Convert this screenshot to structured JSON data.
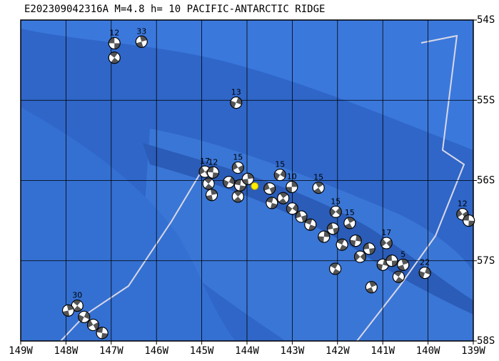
{
  "map": {
    "title": "E202309042316A M=4.8 h= 10 PACIFIC-ANTARCTIC RIDGE",
    "xlim": [
      -149,
      -139
    ],
    "ylim": [
      -58,
      -54
    ],
    "xticks": [
      {
        "value": -149,
        "label": "149W"
      },
      {
        "value": -148,
        "label": "148W"
      },
      {
        "value": -147,
        "label": "147W"
      },
      {
        "value": -146,
        "label": "146W"
      },
      {
        "value": -145,
        "label": "145W"
      },
      {
        "value": -144,
        "label": "144W"
      },
      {
        "value": -143,
        "label": "143W"
      },
      {
        "value": -142,
        "label": "142W"
      },
      {
        "value": -141,
        "label": "141W"
      },
      {
        "value": -140,
        "label": "140W"
      },
      {
        "value": -139,
        "label": "139W"
      }
    ],
    "yticks": [
      {
        "value": -54,
        "label": "54S"
      },
      {
        "value": -55,
        "label": "55S"
      },
      {
        "value": -56,
        "label": "56S"
      },
      {
        "value": -57,
        "label": "57S"
      },
      {
        "value": -58,
        "label": "58S"
      }
    ],
    "events": [
      {
        "lon": -146.93,
        "lat": -54.29,
        "label": "12"
      },
      {
        "lon": -146.93,
        "lat": -54.47
      },
      {
        "lon": -146.33,
        "lat": -54.27,
        "label": "33"
      },
      {
        "lon": -144.24,
        "lat": -55.03,
        "label": "13"
      },
      {
        "lon": -144.93,
        "lat": -55.89,
        "label": "17"
      },
      {
        "lon": -144.75,
        "lat": -55.9,
        "label": "12"
      },
      {
        "lon": -144.85,
        "lat": -56.04
      },
      {
        "lon": -144.78,
        "lat": -56.18
      },
      {
        "lon": -144.4,
        "lat": -56.02
      },
      {
        "lon": -144.2,
        "lat": -55.84,
        "label": "15"
      },
      {
        "lon": -144.15,
        "lat": -56.06
      },
      {
        "lon": -144.2,
        "lat": -56.2
      },
      {
        "lon": -143.98,
        "lat": -55.98
      },
      {
        "lon": -143.27,
        "lat": -55.93,
        "label": "15"
      },
      {
        "lon": -143.5,
        "lat": -56.1
      },
      {
        "lon": -143.45,
        "lat": -56.28
      },
      {
        "lon": -143.2,
        "lat": -56.22
      },
      {
        "lon": -143.01,
        "lat": -56.08,
        "label": "10"
      },
      {
        "lon": -143.0,
        "lat": -56.35
      },
      {
        "lon": -142.8,
        "lat": -56.45
      },
      {
        "lon": -142.6,
        "lat": -56.55
      },
      {
        "lon": -142.42,
        "lat": -56.09,
        "label": "15"
      },
      {
        "lon": -142.3,
        "lat": -56.7
      },
      {
        "lon": -142.04,
        "lat": -56.39,
        "label": "15"
      },
      {
        "lon": -142.1,
        "lat": -56.6
      },
      {
        "lon": -141.9,
        "lat": -56.8
      },
      {
        "lon": -141.73,
        "lat": -56.53,
        "label": "15"
      },
      {
        "lon": -141.6,
        "lat": -56.75
      },
      {
        "lon": -141.5,
        "lat": -56.95
      },
      {
        "lon": -141.3,
        "lat": -56.85
      },
      {
        "lon": -142.05,
        "lat": -57.1
      },
      {
        "lon": -141.25,
        "lat": -57.33
      },
      {
        "lon": -141.0,
        "lat": -57.05
      },
      {
        "lon": -140.92,
        "lat": -56.78,
        "label": "17"
      },
      {
        "lon": -140.8,
        "lat": -57.0
      },
      {
        "lon": -140.65,
        "lat": -57.2
      },
      {
        "lon": -140.55,
        "lat": -57.05,
        "label": "5"
      },
      {
        "lon": -140.07,
        "lat": -57.15,
        "label": "22"
      },
      {
        "lon": -139.24,
        "lat": -56.42,
        "label": "12"
      },
      {
        "lon": -139.1,
        "lat": -56.5
      },
      {
        "lon": -147.75,
        "lat": -57.56,
        "label": "30"
      },
      {
        "lon": -147.95,
        "lat": -57.62
      },
      {
        "lon": -147.6,
        "lat": -57.7
      },
      {
        "lon": -147.4,
        "lat": -57.8
      },
      {
        "lon": -147.2,
        "lat": -57.9
      }
    ],
    "epicenter": {
      "lon": -143.83,
      "lat": -56.07
    }
  }
}
